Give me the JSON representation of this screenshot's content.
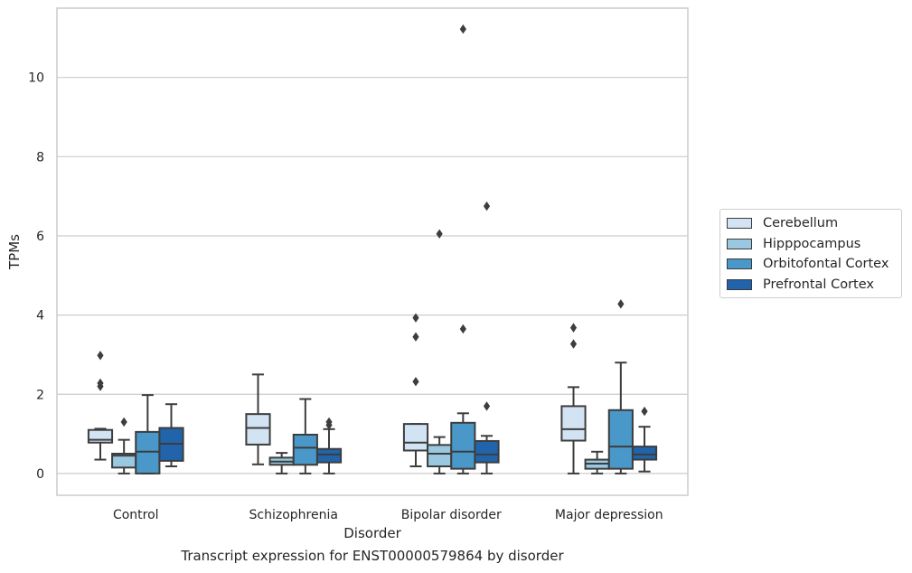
{
  "chart_data": {
    "type": "box",
    "xlabel": "Disorder",
    "ylabel": "TPMs",
    "caption": "Transcript expression for ENST00000579864 by disorder",
    "categories": [
      "Control",
      "Schizophrenia",
      "Bipolar disorder",
      "Major depression"
    ],
    "ylim": [
      -0.55,
      11.75
    ],
    "yticks": [
      0,
      2,
      4,
      6,
      8,
      10
    ],
    "grid": "horizontal",
    "legend_position": "right",
    "series": [
      {
        "name": "Cerebellum",
        "color": "#d2e3f3",
        "boxes": [
          {
            "whislo": 0.35,
            "q1": 0.78,
            "med": 0.85,
            "q3": 1.1,
            "whishi": 1.13,
            "fliers": [
              2.2,
              2.28,
              2.98
            ]
          },
          {
            "whislo": 0.23,
            "q1": 0.73,
            "med": 1.15,
            "q3": 1.5,
            "whishi": 2.5,
            "fliers": []
          },
          {
            "whislo": 0.18,
            "q1": 0.58,
            "med": 0.78,
            "q3": 1.25,
            "whishi": 1.25,
            "fliers": [
              2.32,
              3.45,
              3.93
            ]
          },
          {
            "whislo": 0.0,
            "q1": 0.83,
            "med": 1.12,
            "q3": 1.7,
            "whishi": 2.18,
            "fliers": [
              3.27,
              3.68
            ]
          }
        ]
      },
      {
        "name": "Hipppocampus",
        "color": "#9ac8e0",
        "boxes": [
          {
            "whislo": 0.0,
            "q1": 0.15,
            "med": 0.45,
            "q3": 0.5,
            "whishi": 0.85,
            "fliers": [
              1.3
            ]
          },
          {
            "whislo": 0.0,
            "q1": 0.22,
            "med": 0.3,
            "q3": 0.4,
            "whishi": 0.52,
            "fliers": []
          },
          {
            "whislo": 0.0,
            "q1": 0.18,
            "med": 0.5,
            "q3": 0.72,
            "whishi": 0.92,
            "fliers": [
              6.05
            ]
          },
          {
            "whislo": 0.0,
            "q1": 0.12,
            "med": 0.25,
            "q3": 0.35,
            "whishi": 0.55,
            "fliers": []
          }
        ]
      },
      {
        "name": "Orbitofontal Cortex",
        "color": "#4a98c9",
        "boxes": [
          {
            "whislo": 0.0,
            "q1": 0.0,
            "med": 0.55,
            "q3": 1.05,
            "whishi": 1.98,
            "fliers": []
          },
          {
            "whislo": 0.0,
            "q1": 0.22,
            "med": 0.65,
            "q3": 0.98,
            "whishi": 1.88,
            "fliers": []
          },
          {
            "whislo": 0.0,
            "q1": 0.12,
            "med": 0.55,
            "q3": 1.28,
            "whishi": 1.52,
            "fliers": [
              3.65,
              11.22
            ]
          },
          {
            "whislo": 0.0,
            "q1": 0.12,
            "med": 0.68,
            "q3": 1.6,
            "whishi": 2.8,
            "fliers": [
              4.28
            ]
          }
        ]
      },
      {
        "name": "Prefrontal Cortex",
        "color": "#2164ab",
        "boxes": [
          {
            "whislo": 0.18,
            "q1": 0.32,
            "med": 0.75,
            "q3": 1.15,
            "whishi": 1.75,
            "fliers": []
          },
          {
            "whislo": 0.0,
            "q1": 0.28,
            "med": 0.48,
            "q3": 0.62,
            "whishi": 1.12,
            "fliers": [
              1.22,
              1.3
            ]
          },
          {
            "whislo": 0.0,
            "q1": 0.28,
            "med": 0.48,
            "q3": 0.82,
            "whishi": 0.95,
            "fliers": [
              1.7,
              6.75
            ]
          },
          {
            "whislo": 0.05,
            "q1": 0.35,
            "med": 0.48,
            "q3": 0.68,
            "whishi": 1.18,
            "fliers": [
              1.57
            ]
          }
        ]
      }
    ]
  }
}
